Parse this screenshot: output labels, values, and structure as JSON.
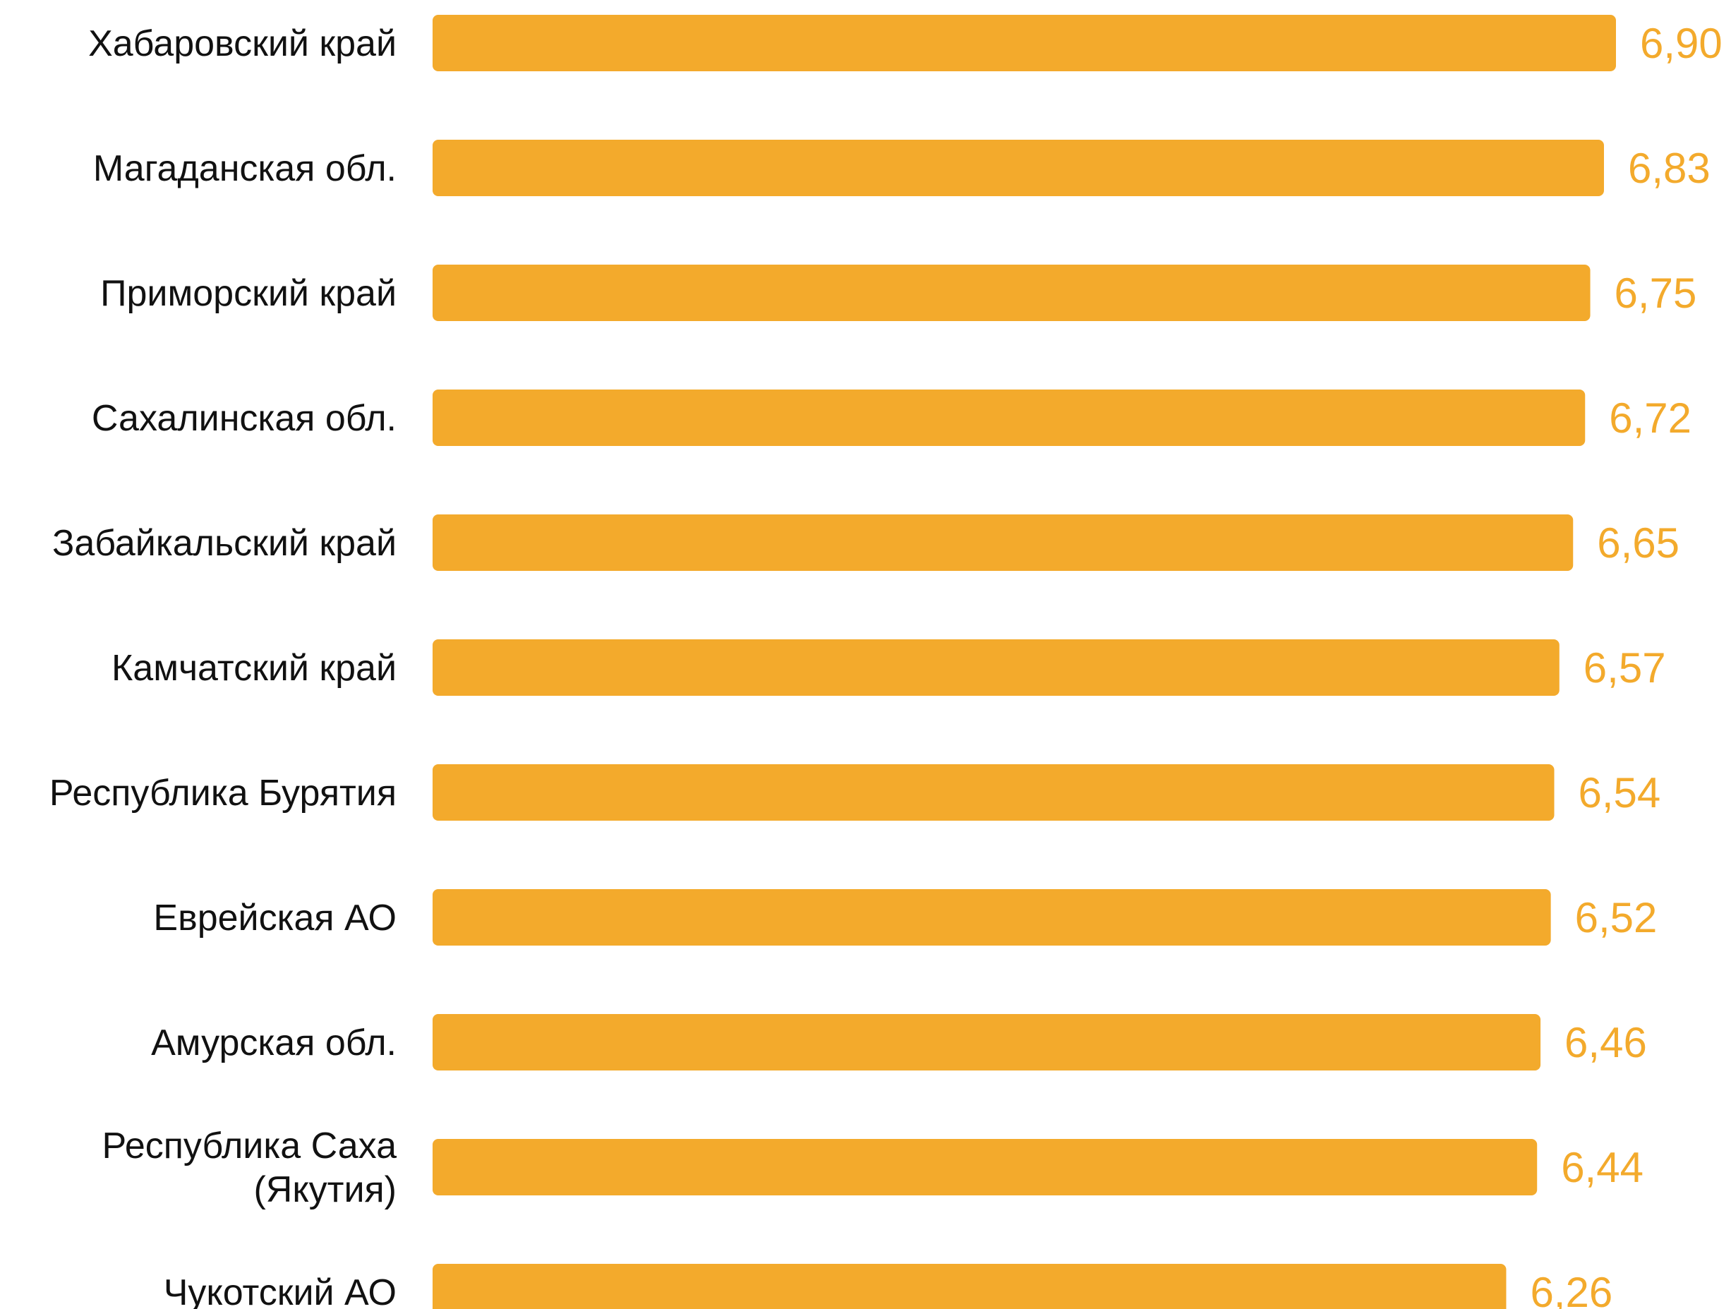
{
  "chart_data": {
    "type": "bar",
    "orientation": "horizontal",
    "categories": [
      "Хабаровский край",
      "Магаданская обл.",
      "Приморский край",
      "Сахалинская обл.",
      "Забайкальский край",
      "Камчатский край",
      "Республика Бурятия",
      "Еврейская АО",
      "Амурская обл.",
      "Республика Саха (Якутия)",
      "Чукотский АО"
    ],
    "category_lines": [
      [
        "Хабаровский край"
      ],
      [
        "Магаданская обл."
      ],
      [
        "Приморский край"
      ],
      [
        "Сахалинская обл."
      ],
      [
        "Забайкальский край"
      ],
      [
        "Камчатский край"
      ],
      [
        "Республика Бурятия"
      ],
      [
        "Еврейская АО"
      ],
      [
        "Амурская обл."
      ],
      [
        "Республика Саха",
        "(Якутия)"
      ],
      [
        "Чукотский АО"
      ]
    ],
    "values": [
      6.9,
      6.83,
      6.75,
      6.72,
      6.65,
      6.57,
      6.54,
      6.52,
      6.46,
      6.44,
      6.26
    ],
    "value_labels": [
      "6,90",
      "6,83",
      "6,75",
      "6,72",
      "6,65",
      "6,57",
      "6,54",
      "6,52",
      "6,46",
      "6,44",
      "6,26"
    ],
    "title": "",
    "xlabel": "",
    "ylabel": "",
    "xlim": [
      0,
      6.9
    ],
    "grid": false,
    "legend": "none",
    "colors": {
      "bar": "#F3AA2C",
      "value_label": "#F3AA2C",
      "category_label": "#111111"
    }
  }
}
